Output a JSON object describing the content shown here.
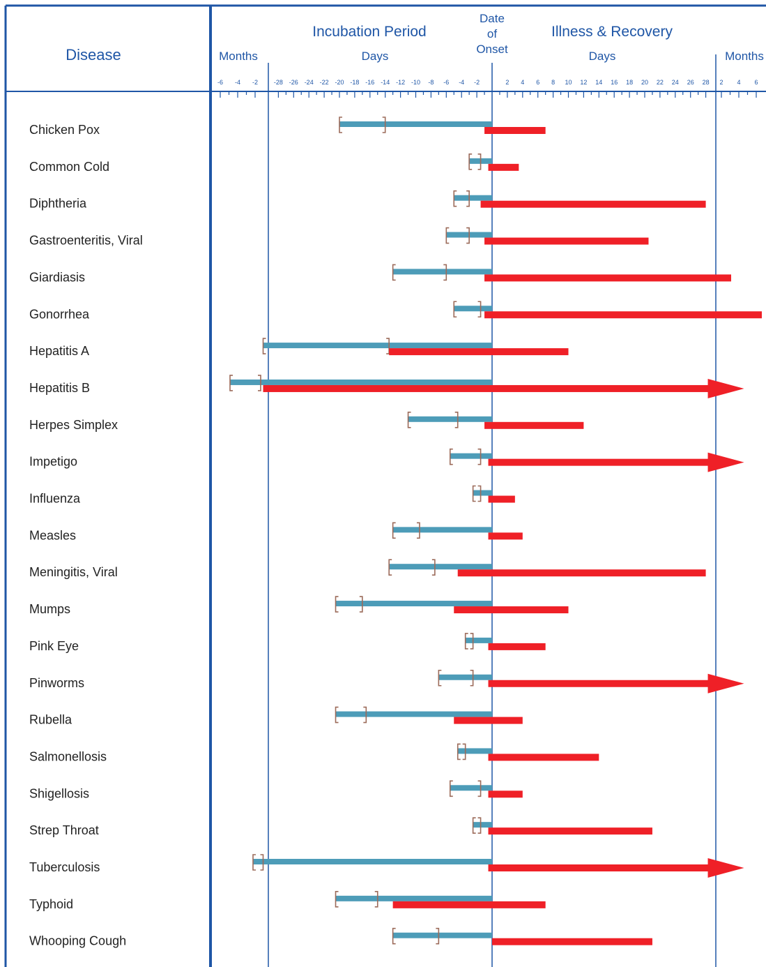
{
  "colors": {
    "frame": "#1f56a6",
    "incubation": "#4d9cb8",
    "illness": "#ef2027",
    "bracket": "#9c6b5a",
    "label": "#222222",
    "background": "#ffffff"
  },
  "header": {
    "disease_label": "Disease",
    "incubation_title": "Incubation Period",
    "illness_title": "Illness & Recovery",
    "onset_lines": [
      "Date",
      "of",
      "Onset"
    ],
    "months_left": "Months",
    "days_left": "Days",
    "days_right": "Days",
    "months_right": "Months"
  },
  "chart_data": {
    "type": "bar",
    "title": "",
    "xlabel": "Days",
    "axis_note": "day 0 = date of onset; beyond 28 days on either side the scale switches to months",
    "tick_labels": {
      "months_left": [
        "-6",
        "-4",
        "-2"
      ],
      "days_left": [
        "-28",
        "-26",
        "-24",
        "-22",
        "-20",
        "-18",
        "-16",
        "-14",
        "-12",
        "-10",
        "-8",
        "-6",
        "-4",
        "-2"
      ],
      "days_right": [
        "2",
        "4",
        "6",
        "8",
        "10",
        "12",
        "14",
        "16",
        "18",
        "20",
        "22",
        "24",
        "26",
        "28"
      ],
      "months_right": [
        "2",
        "4",
        "6"
      ]
    },
    "series": [
      {
        "name": "Incubation Period",
        "color": "#4d9cb8"
      },
      {
        "name": "Illness & Recovery",
        "color": "#ef2027"
      }
    ],
    "rows": [
      {
        "disease": "Chicken Pox",
        "incubation": {
          "start_days": -20,
          "end_days": 0
        },
        "incubation_range_days": [
          -20,
          -14
        ],
        "illness": {
          "start_days": -1,
          "end_days": 7,
          "continues": false
        }
      },
      {
        "disease": "Common Cold",
        "incubation": {
          "start_days": -3,
          "end_days": 0
        },
        "incubation_range_days": [
          -3,
          -1.5
        ],
        "illness": {
          "start_days": -0.5,
          "end_days": 3.5,
          "continues": false
        }
      },
      {
        "disease": "Diphtheria",
        "incubation": {
          "start_days": -5,
          "end_days": 0
        },
        "incubation_range_days": [
          -5,
          -3
        ],
        "illness": {
          "start_days": -1.5,
          "end_days": 28,
          "continues": false
        }
      },
      {
        "disease": "Gastroenteritis, Viral",
        "incubation": {
          "start_days": -6,
          "end_days": 0
        },
        "incubation_range_days": [
          -6,
          -3
        ],
        "illness": {
          "start_days": -1,
          "end_days": 20.5,
          "continues": false
        }
      },
      {
        "disease": "Giardiasis",
        "incubation": {
          "start_days": -13,
          "end_days": 0
        },
        "incubation_range_days": [
          -13,
          -6
        ],
        "illness": {
          "start_days": -1,
          "end_days": 31,
          "continues": false
        }
      },
      {
        "disease": "Gonorrhea",
        "incubation": {
          "start_days": -5,
          "end_days": 0
        },
        "incubation_range_days": [
          -5,
          -1.5
        ],
        "illness": {
          "start_days": -1,
          "end_days": 35,
          "continues": false
        }
      },
      {
        "disease": "Hepatitis A",
        "incubation": {
          "start_days": -30,
          "end_days": 0
        },
        "incubation_range_days": [
          -30,
          -13.5
        ],
        "illness": {
          "start_days": -13.5,
          "end_days": 10,
          "continues": false
        }
      },
      {
        "disease": "Hepatitis B",
        "incubation": {
          "start_days": -35,
          "end_days": 0
        },
        "incubation_range_days": [
          -35,
          -31
        ],
        "illness": {
          "start_days": -30,
          "end_days": 29,
          "continues": true
        }
      },
      {
        "disease": "Herpes Simplex",
        "incubation": {
          "start_days": -11,
          "end_days": 0
        },
        "incubation_range_days": [
          -11,
          -4.5
        ],
        "illness": {
          "start_days": -1,
          "end_days": 12,
          "continues": false
        }
      },
      {
        "disease": "Impetigo",
        "incubation": {
          "start_days": -5.5,
          "end_days": 0
        },
        "incubation_range_days": [
          -5.5,
          -1.5
        ],
        "illness": {
          "start_days": -0.5,
          "end_days": 29,
          "continues": true
        }
      },
      {
        "disease": "Influenza",
        "incubation": {
          "start_days": -2.5,
          "end_days": 0
        },
        "incubation_range_days": [
          -2.5,
          -1.5
        ],
        "illness": {
          "start_days": -0.5,
          "end_days": 3,
          "continues": false
        }
      },
      {
        "disease": "Measles",
        "incubation": {
          "start_days": -13,
          "end_days": 0
        },
        "incubation_range_days": [
          -13,
          -9.5
        ],
        "illness": {
          "start_days": -0.5,
          "end_days": 4,
          "continues": false
        }
      },
      {
        "disease": "Meningitis, Viral",
        "incubation": {
          "start_days": -13.5,
          "end_days": 0
        },
        "incubation_range_days": [
          -13.5,
          -7.5
        ],
        "illness": {
          "start_days": -4.5,
          "end_days": 28,
          "continues": false
        }
      },
      {
        "disease": "Mumps",
        "incubation": {
          "start_days": -20.5,
          "end_days": 0
        },
        "incubation_range_days": [
          -20.5,
          -17
        ],
        "illness": {
          "start_days": -5,
          "end_days": 10,
          "continues": false
        }
      },
      {
        "disease": "Pink Eye",
        "incubation": {
          "start_days": -3.5,
          "end_days": 0
        },
        "incubation_range_days": [
          -3.5,
          -2.5
        ],
        "illness": {
          "start_days": -0.5,
          "end_days": 7,
          "continues": false
        }
      },
      {
        "disease": "Pinworms",
        "incubation": {
          "start_days": -7,
          "end_days": 0
        },
        "incubation_range_days": [
          -7,
          -2.5
        ],
        "illness": {
          "start_days": -0.5,
          "end_days": 29,
          "continues": true
        }
      },
      {
        "disease": "Rubella",
        "incubation": {
          "start_days": -20.5,
          "end_days": 0
        },
        "incubation_range_days": [
          -20.5,
          -16.5
        ],
        "illness": {
          "start_days": -5,
          "end_days": 4,
          "continues": false
        }
      },
      {
        "disease": "Salmonellosis",
        "incubation": {
          "start_days": -4.5,
          "end_days": 0
        },
        "incubation_range_days": [
          -4.5,
          -3.5
        ],
        "illness": {
          "start_days": -0.5,
          "end_days": 14,
          "continues": false
        }
      },
      {
        "disease": "Shigellosis",
        "incubation": {
          "start_days": -5.5,
          "end_days": 0
        },
        "incubation_range_days": [
          -5.5,
          -1.5
        ],
        "illness": {
          "start_days": -0.5,
          "end_days": 4,
          "continues": false
        }
      },
      {
        "disease": "Strep Throat",
        "incubation": {
          "start_days": -2.5,
          "end_days": 0
        },
        "incubation_range_days": [
          -2.5,
          -1.5
        ],
        "illness": {
          "start_days": -0.5,
          "end_days": 21,
          "continues": false
        }
      },
      {
        "disease": "Tuberculosis",
        "incubation": {
          "start_days": -32,
          "end_days": 0
        },
        "incubation_range_days": [
          -32,
          -30
        ],
        "illness": {
          "start_days": -0.5,
          "end_days": 29,
          "continues": true
        }
      },
      {
        "disease": "Typhoid",
        "incubation": {
          "start_days": -20.5,
          "end_days": 0
        },
        "incubation_range_days": [
          -20.5,
          -15
        ],
        "illness": {
          "start_days": -13,
          "end_days": 7,
          "continues": false
        }
      },
      {
        "disease": "Whooping Cough",
        "incubation": {
          "start_days": -13,
          "end_days": 0
        },
        "incubation_range_days": [
          -13,
          -7
        ],
        "illness": {
          "start_days": 0,
          "end_days": 21,
          "continues": false
        }
      }
    ]
  }
}
